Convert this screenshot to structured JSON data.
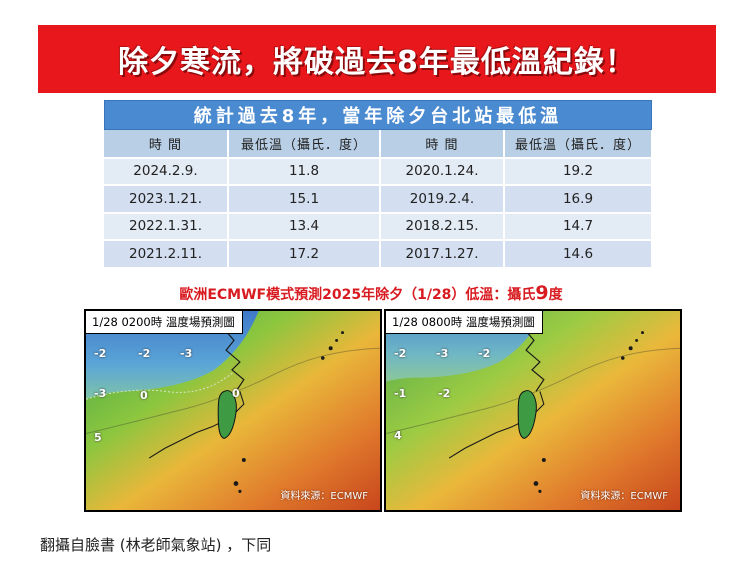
{
  "banner": {
    "title": "除夕寒流，將破過去8年最低溫紀錄！",
    "color": "#e8171b"
  },
  "table": {
    "caption": "統計過去8年，當年除夕台北站最低溫",
    "headers": [
      "時 間",
      "最低溫（攝氏．度）",
      "時 間",
      "最低溫（攝氏．度）"
    ],
    "rows": [
      [
        "2024.2.9.",
        "11.8",
        "2020.1.24.",
        "19.2"
      ],
      [
        "2023.1.21.",
        "15.1",
        "2019.2.4.",
        "16.9"
      ],
      [
        "2022.1.31.",
        "13.4",
        "2018.2.15.",
        "14.7"
      ],
      [
        "2021.2.11.",
        "17.2",
        "2017.1.27.",
        "14.6"
      ]
    ]
  },
  "forecast": {
    "text_prefix": "歐洲ECMWF模式預測2025年除夕（1/28）低溫：攝氏",
    "value": "9",
    "text_suffix": "度",
    "color": "#d81b20"
  },
  "maps": [
    {
      "label": "1/28 0200時  溫度場預測圖",
      "credit": "資料來源：ECMWF",
      "isotherms": [
        "-2",
        "-2",
        "-3",
        "-3",
        "0",
        "0",
        "5"
      ]
    },
    {
      "label": "1/28 0800時  溫度場預測圖",
      "credit": "資料來源：ECMWF",
      "isotherms": [
        "-2",
        "-3",
        "-2",
        "-1",
        "-2",
        "4"
      ]
    }
  ],
  "footer": {
    "note": "翻攝自臉書 (林老師氣象站) ，下同"
  }
}
